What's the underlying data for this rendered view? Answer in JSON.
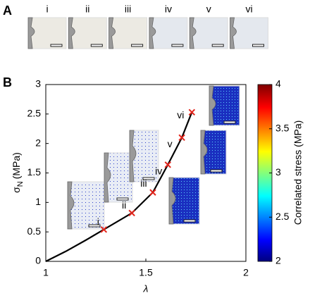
{
  "panel_labels": [
    "A",
    "B"
  ],
  "image_strip": {
    "labels": [
      "i",
      "ii",
      "iii",
      "iv",
      "v",
      "vi"
    ]
  },
  "chart_data": {
    "type": "line",
    "xlabel": "λ",
    "ylabel": {
      "symbol": "σ",
      "subscript": "N",
      "unit": "(MPa)"
    },
    "x": [
      1,
      1.1,
      1.2,
      1.29,
      1.43,
      1.535,
      1.61,
      1.68,
      1.73
    ],
    "values": [
      0,
      0.17,
      0.36,
      0.54,
      0.82,
      1.17,
      1.64,
      2.1,
      2.53
    ],
    "color": "#000000",
    "markers": {
      "x": [
        1.29,
        1.43,
        1.535,
        1.61,
        1.68,
        1.73
      ],
      "values": [
        0.54,
        0.82,
        1.17,
        1.64,
        2.1,
        2.53
      ],
      "labels": [
        "i",
        "ii",
        "iii",
        "iv",
        "v",
        "vi"
      ],
      "color": "#e3241b"
    },
    "xlim": [
      1,
      2
    ],
    "xticks": [
      1,
      1.5,
      2
    ],
    "ylim": [
      0,
      3
    ],
    "yticks": [
      0,
      0.5,
      1,
      1.5,
      2,
      2.5,
      3
    ],
    "colorbar": {
      "label": "Correlated stress (MPa)",
      "lim": [
        2,
        4
      ],
      "ticks": [
        2,
        2.5,
        3,
        3.5,
        4
      ]
    }
  }
}
